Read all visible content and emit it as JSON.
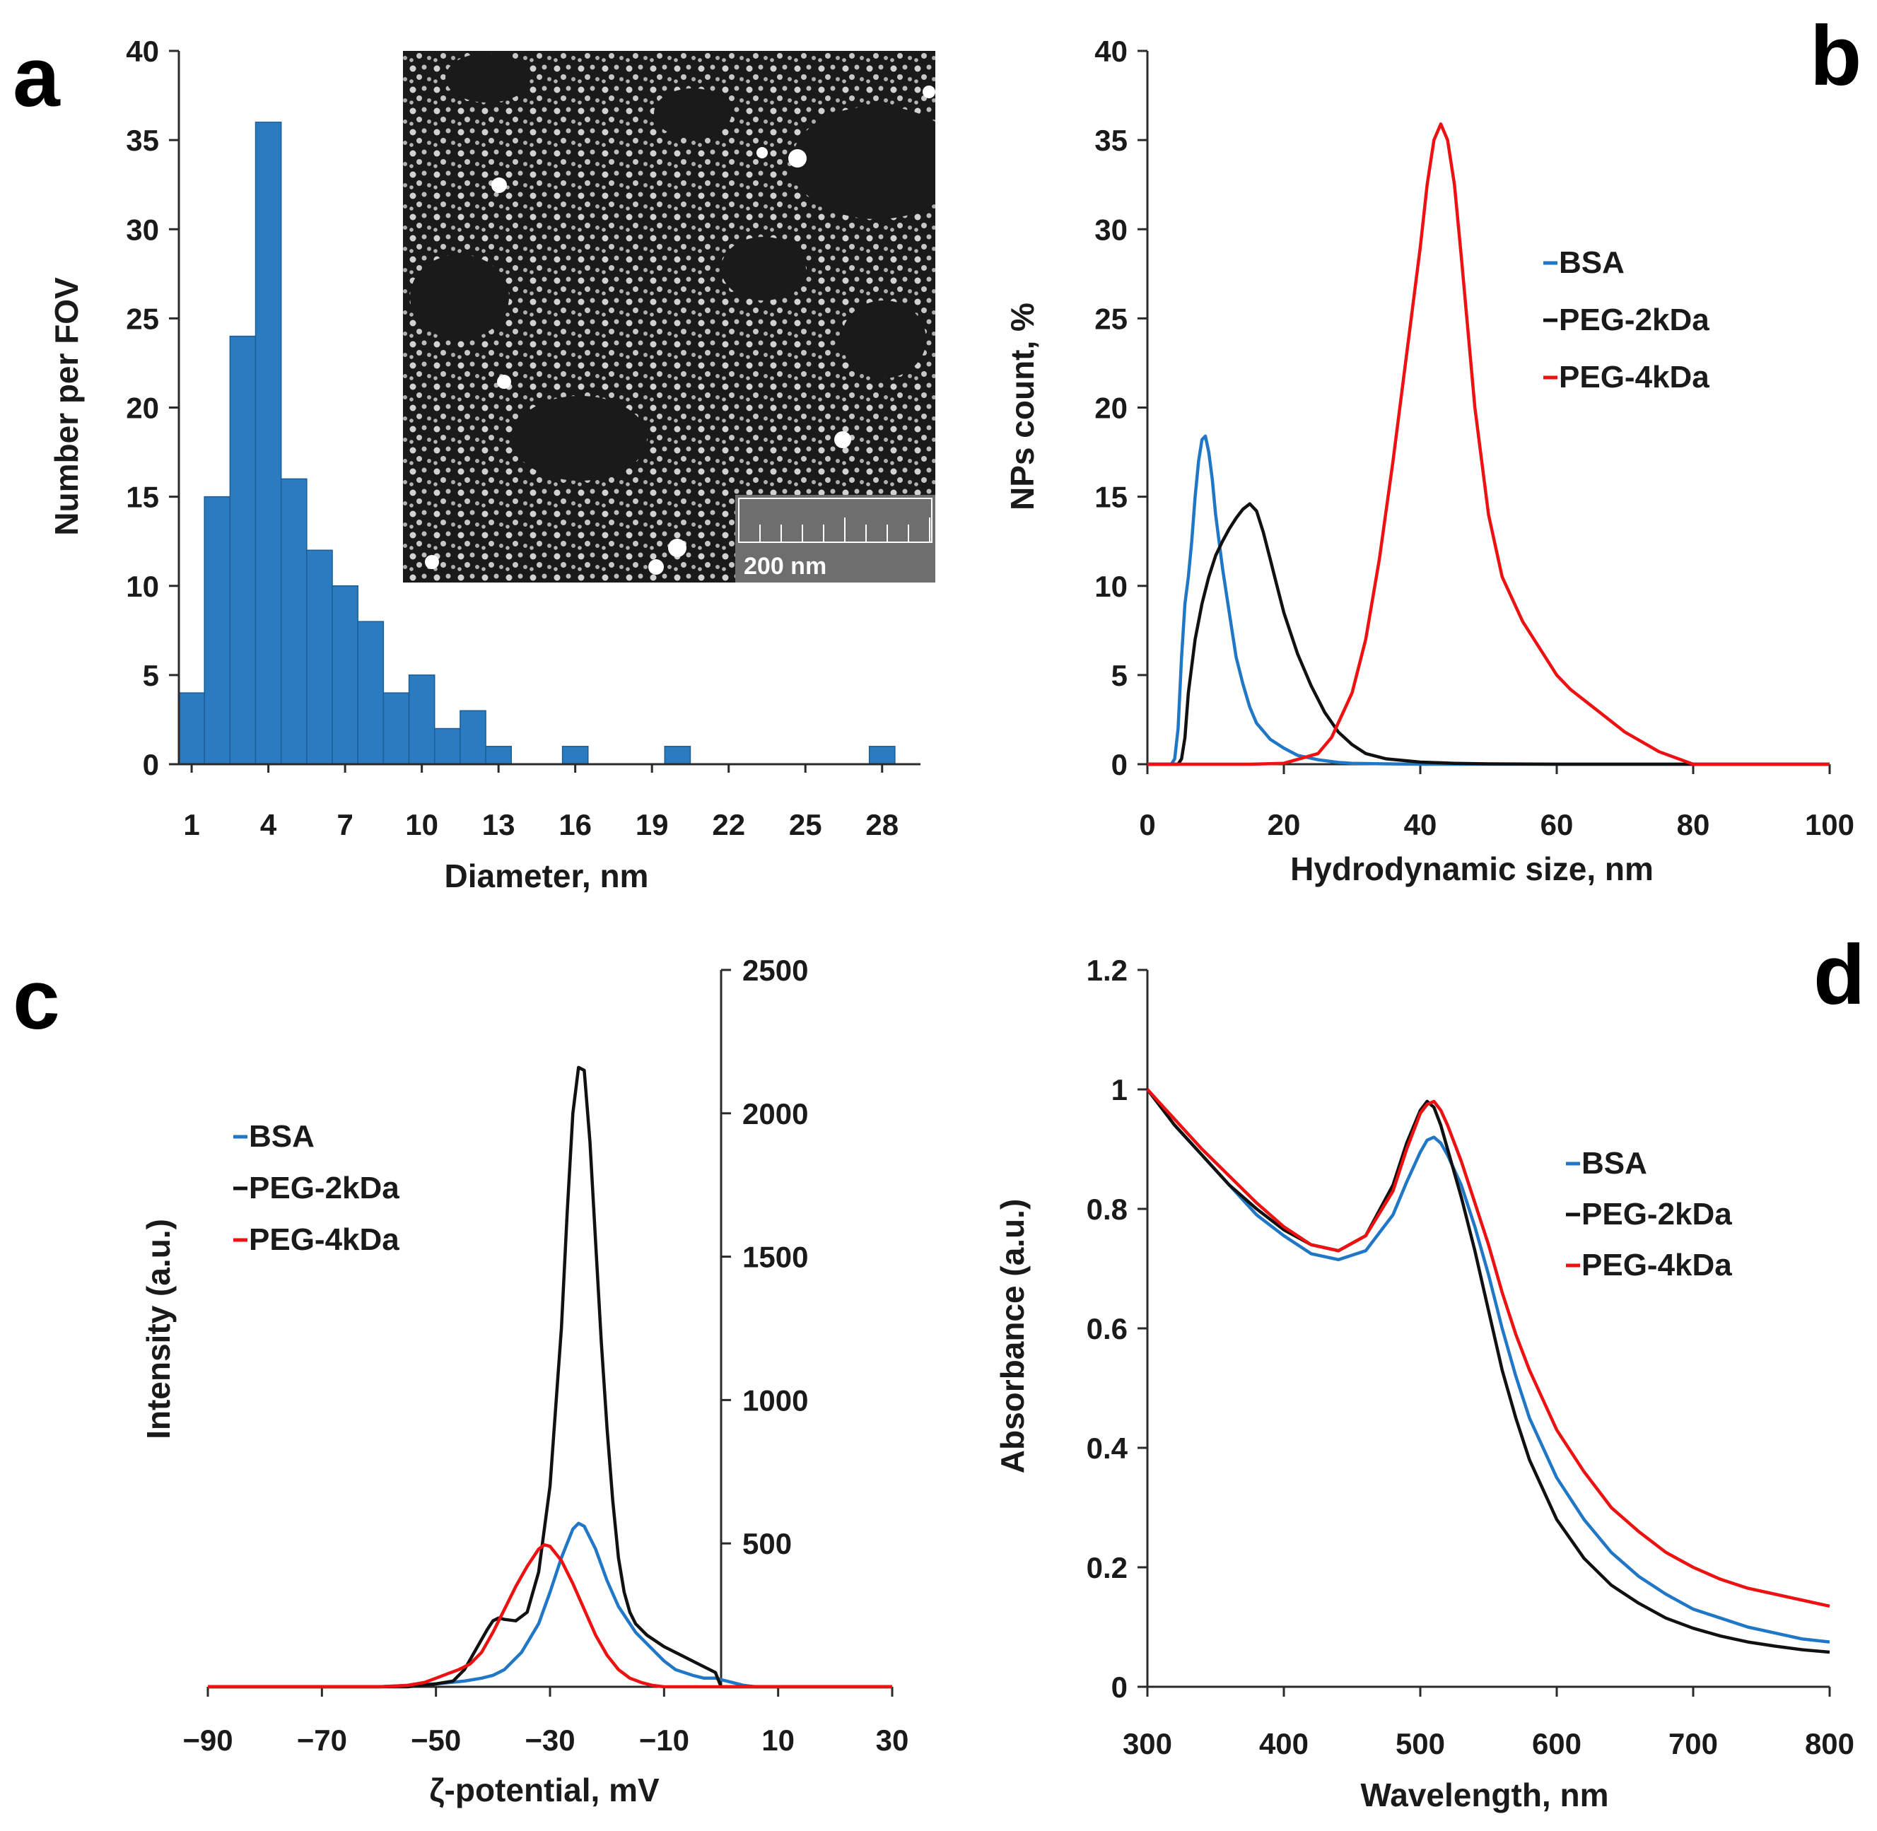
{
  "colors": {
    "BSA": "#1f77c6",
    "PEG-2kDa": "#111111",
    "PEG-4kDa": "#ee1111",
    "bar": "#2a7bc0"
  },
  "panels": {
    "a": "a",
    "b": "b",
    "c": "c",
    "d": "d"
  },
  "chart_data": [
    {
      "panel": "a",
      "type": "bar",
      "title": "",
      "xlabel": "Diameter, nm",
      "ylabel": "Number per FOV",
      "ylim": [
        0,
        40
      ],
      "yticks": [
        0,
        5,
        10,
        15,
        20,
        25,
        30,
        35,
        40
      ],
      "xlim": [
        1,
        29
      ],
      "xticks": [
        1,
        4,
        7,
        10,
        13,
        16,
        19,
        22,
        25,
        28
      ],
      "bins": [
        1,
        2,
        3,
        4,
        5,
        6,
        7,
        8,
        9,
        10,
        11,
        12,
        13,
        14,
        15,
        16,
        17,
        18,
        19,
        20,
        21,
        22,
        23,
        24,
        25,
        26,
        27,
        28
      ],
      "values": [
        4,
        15,
        24,
        36,
        16,
        12,
        10,
        8,
        4,
        5,
        2,
        3,
        1,
        0,
        0,
        1,
        0,
        0,
        0,
        1,
        0,
        0,
        0,
        0,
        0,
        0,
        0,
        1
      ],
      "inset": {
        "description": "electron micrograph",
        "scale_bar": "200 nm"
      }
    },
    {
      "panel": "b",
      "type": "line",
      "xlabel": "Hydrodynamic size, nm",
      "ylabel": "NPs count, %",
      "xlim": [
        0,
        100
      ],
      "ylim": [
        0,
        40
      ],
      "xticks": [
        0,
        20,
        40,
        60,
        80,
        100
      ],
      "yticks": [
        0,
        5,
        10,
        15,
        20,
        25,
        30,
        35,
        40
      ],
      "legend": "right",
      "series": [
        {
          "name": "BSA",
          "x": [
            0,
            3.5,
            4,
            4.5,
            5,
            5.5,
            6,
            6.5,
            7,
            7.5,
            8,
            8.5,
            9,
            9.5,
            10,
            11,
            12,
            13,
            14,
            15,
            16,
            18,
            20,
            22,
            25,
            28,
            30,
            35,
            40,
            50,
            100
          ],
          "y": [
            0,
            0,
            0.3,
            2,
            6,
            9,
            10.5,
            12.5,
            15,
            17,
            18.2,
            18.4,
            17.5,
            16,
            14,
            11,
            8.5,
            6,
            4.5,
            3.2,
            2.3,
            1.4,
            0.9,
            0.5,
            0.25,
            0.1,
            0.05,
            0.02,
            0,
            0,
            0
          ]
        },
        {
          "name": "PEG-2kDa",
          "x": [
            0,
            4.5,
            5,
            5.5,
            6,
            7,
            8,
            9,
            10,
            11,
            12,
            13,
            14,
            15,
            16,
            17,
            18,
            19,
            20,
            22,
            24,
            26,
            28,
            30,
            32,
            35,
            40,
            45,
            50,
            60,
            100
          ],
          "y": [
            0,
            0,
            0.3,
            1.5,
            4,
            7,
            9,
            10.5,
            11.7,
            12.5,
            13.2,
            13.8,
            14.3,
            14.6,
            14.2,
            13,
            11.5,
            10,
            8.5,
            6.2,
            4.4,
            2.9,
            1.8,
            1.1,
            0.6,
            0.3,
            0.12,
            0.05,
            0.02,
            0,
            0
          ]
        },
        {
          "name": "PEG-4kDa",
          "x": [
            0,
            15,
            20,
            25,
            27,
            30,
            32,
            34,
            36,
            38,
            40,
            41,
            42,
            43,
            44,
            45,
            46,
            48,
            50,
            52,
            55,
            58,
            60,
            62,
            65,
            70,
            75,
            80,
            100
          ],
          "y": [
            0,
            0,
            0.05,
            0.6,
            1.5,
            4,
            7,
            11.5,
            17,
            23,
            29,
            32.5,
            35,
            35.9,
            35,
            32.5,
            28.5,
            20,
            14,
            10.5,
            8,
            6.2,
            5,
            4.2,
            3.3,
            1.8,
            0.7,
            0,
            0
          ]
        }
      ]
    },
    {
      "panel": "c",
      "type": "line",
      "xlabel": "ζ-potential, mV",
      "ylabel": "Intensity (a.u.)",
      "xlim": [
        -90,
        30
      ],
      "ylim": [
        0,
        2500
      ],
      "xticks": [
        -90,
        -70,
        -50,
        -30,
        -10,
        10,
        30
      ],
      "xtick_labels": [
        "−90",
        "−70",
        "−50",
        "−30",
        "−10",
        "10",
        "30"
      ],
      "yticks": [
        500,
        1000,
        1500,
        2000,
        2500
      ],
      "y_axis_at_x": 0,
      "legend": "top-left",
      "series": [
        {
          "name": "BSA",
          "x": [
            -90,
            -60,
            -55,
            -50,
            -45,
            -42,
            -40,
            -38,
            -35,
            -32,
            -30,
            -28,
            -26,
            -25,
            -24,
            -22,
            -20,
            -18,
            -15,
            -12,
            -10,
            -8,
            -5,
            -3,
            -1,
            0,
            2,
            4,
            6,
            30
          ],
          "y": [
            0,
            0,
            5,
            10,
            20,
            30,
            40,
            60,
            120,
            220,
            330,
            450,
            550,
            570,
            560,
            480,
            370,
            280,
            190,
            130,
            90,
            60,
            40,
            30,
            30,
            25,
            15,
            5,
            0,
            0
          ]
        },
        {
          "name": "PEG-2kDa",
          "x": [
            -90,
            -55,
            -50,
            -47,
            -45,
            -43,
            -41,
            -40,
            -39,
            -38,
            -36,
            -34,
            -32,
            -30,
            -28,
            -27,
            -26,
            -25,
            -24,
            -23,
            -22,
            -21,
            -20,
            -19,
            -18,
            -17,
            -16,
            -15,
            -13,
            -10,
            -7,
            -4,
            -1,
            0,
            30
          ],
          "y": [
            0,
            0,
            10,
            20,
            60,
            130,
            200,
            230,
            240,
            235,
            230,
            260,
            400,
            700,
            1250,
            1650,
            2000,
            2160,
            2150,
            1900,
            1550,
            1200,
            900,
            650,
            450,
            330,
            260,
            220,
            180,
            140,
            110,
            80,
            50,
            0,
            0
          ]
        },
        {
          "name": "PEG-4kDa",
          "x": [
            -90,
            -60,
            -55,
            -52,
            -50,
            -48,
            -46,
            -44,
            -42,
            -40,
            -38,
            -36,
            -34,
            -32,
            -31,
            -30,
            -28,
            -26,
            -24,
            -22,
            -20,
            -18,
            -16,
            -14,
            -12,
            -10,
            30
          ],
          "y": [
            0,
            0,
            5,
            15,
            30,
            45,
            60,
            80,
            120,
            190,
            270,
            350,
            420,
            480,
            495,
            490,
            440,
            360,
            270,
            180,
            110,
            60,
            30,
            15,
            5,
            0,
            0
          ]
        }
      ]
    },
    {
      "panel": "d",
      "type": "line",
      "xlabel": "Wavelength, nm",
      "ylabel": "Absorbance (a.u.)",
      "xlim": [
        300,
        800
      ],
      "ylim": [
        0,
        1.2
      ],
      "xticks": [
        300,
        400,
        500,
        600,
        700,
        800
      ],
      "yticks": [
        0,
        0.2,
        0.4,
        0.6,
        0.8,
        1,
        1.2
      ],
      "legend": "right",
      "series": [
        {
          "name": "BSA",
          "x": [
            300,
            320,
            340,
            360,
            380,
            400,
            420,
            440,
            460,
            480,
            490,
            500,
            505,
            510,
            515,
            520,
            530,
            540,
            550,
            560,
            570,
            580,
            600,
            620,
            640,
            660,
            680,
            700,
            720,
            740,
            760,
            780,
            800
          ],
          "y": [
            1.0,
            0.94,
            0.89,
            0.84,
            0.79,
            0.755,
            0.725,
            0.715,
            0.73,
            0.79,
            0.845,
            0.895,
            0.915,
            0.92,
            0.91,
            0.89,
            0.84,
            0.77,
            0.69,
            0.6,
            0.52,
            0.45,
            0.35,
            0.28,
            0.225,
            0.185,
            0.155,
            0.13,
            0.115,
            0.1,
            0.09,
            0.08,
            0.075
          ]
        },
        {
          "name": "PEG-2kDa",
          "x": [
            300,
            320,
            340,
            360,
            380,
            400,
            420,
            440,
            460,
            480,
            490,
            500,
            505,
            510,
            515,
            520,
            530,
            540,
            550,
            560,
            570,
            580,
            600,
            620,
            640,
            660,
            680,
            700,
            720,
            740,
            760,
            780,
            800
          ],
          "y": [
            1.0,
            0.94,
            0.89,
            0.84,
            0.8,
            0.765,
            0.74,
            0.73,
            0.755,
            0.84,
            0.91,
            0.965,
            0.98,
            0.97,
            0.94,
            0.9,
            0.82,
            0.73,
            0.63,
            0.53,
            0.45,
            0.38,
            0.28,
            0.215,
            0.17,
            0.14,
            0.115,
            0.098,
            0.085,
            0.075,
            0.068,
            0.062,
            0.058
          ]
        },
        {
          "name": "PEG-4kDa",
          "x": [
            300,
            320,
            340,
            360,
            380,
            400,
            420,
            440,
            460,
            480,
            490,
            500,
            505,
            510,
            515,
            520,
            530,
            540,
            550,
            560,
            570,
            580,
            600,
            620,
            640,
            660,
            680,
            700,
            720,
            740,
            760,
            780,
            800
          ],
          "y": [
            1.0,
            0.95,
            0.9,
            0.855,
            0.81,
            0.77,
            0.74,
            0.73,
            0.755,
            0.83,
            0.9,
            0.96,
            0.975,
            0.98,
            0.965,
            0.94,
            0.88,
            0.81,
            0.74,
            0.66,
            0.59,
            0.53,
            0.43,
            0.36,
            0.3,
            0.26,
            0.225,
            0.2,
            0.18,
            0.165,
            0.155,
            0.145,
            0.135
          ]
        }
      ]
    }
  ]
}
